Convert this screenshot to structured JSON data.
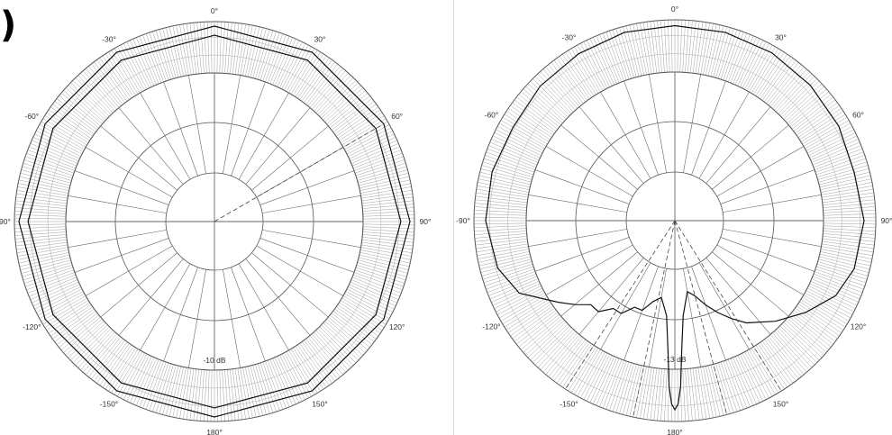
{
  "panel_label": ")",
  "chart_data": [
    {
      "type": "polar",
      "angle_labels": [
        "0°",
        "30°",
        "60°",
        "90°",
        "120°",
        "150°",
        "180°",
        "-150°",
        "-120°",
        "-90°",
        "-60°",
        "-30°"
      ],
      "angle_values": [
        0,
        30,
        60,
        90,
        120,
        150,
        180,
        -150,
        -120,
        -90,
        -60,
        -30
      ],
      "center_label": "-10 dB",
      "rmin_db": -10,
      "rmax_db": 0,
      "series": [
        {
          "style": "solid",
          "theta": [
            0,
            30,
            60,
            90,
            120,
            150,
            180,
            210,
            240,
            270,
            300,
            330
          ],
          "r_db": [
            -0.3,
            -0.3,
            -0.3,
            -0.3,
            -0.3,
            -0.3,
            -0.3,
            -0.3,
            -0.3,
            -0.3,
            -0.3,
            -0.3
          ]
        },
        {
          "style": "solid",
          "theta": [
            0,
            30,
            60,
            90,
            120,
            150,
            180,
            210,
            240,
            270,
            300,
            330
          ],
          "r_db": [
            -0.9,
            -0.9,
            -0.9,
            -0.9,
            -0.9,
            -0.9,
            -0.9,
            -0.9,
            -0.9,
            -0.9,
            -0.9,
            -0.9
          ]
        },
        {
          "style": "dashed",
          "theta": [
            60
          ],
          "r_db": [
            -0.5
          ]
        }
      ]
    },
    {
      "type": "polar",
      "angle_labels": [
        "0°",
        "30°",
        "60°",
        "90°",
        "120°",
        "150°",
        "180°",
        "-150°",
        "-120°",
        "-90°",
        "-60°",
        "-30°"
      ],
      "angle_values": [
        0,
        30,
        60,
        90,
        120,
        150,
        180,
        -150,
        -120,
        -90,
        -60,
        -30
      ],
      "center_label": "-13 dB",
      "rmin_db": -13,
      "rmax_db": 0,
      "series": [
        {
          "style": "solid",
          "theta": [
            0,
            15,
            30,
            45,
            60,
            75,
            90,
            105,
            115,
            125,
            135,
            145,
            150,
            155,
            160,
            165,
            170,
            175,
            177,
            178,
            179,
            180,
            181,
            182,
            183,
            185,
            190,
            195,
            200,
            205,
            210,
            215,
            220,
            225,
            230,
            235,
            245,
            255,
            270,
            285,
            300,
            315,
            330,
            345
          ],
          "r_db": [
            -0.5,
            -0.5,
            -0.6,
            -0.8,
            -1.0,
            -1.3,
            -1.0,
            -1.3,
            -2.0,
            -3.5,
            -5.0,
            -6.5,
            -7.5,
            -8.5,
            -9.5,
            -10.5,
            -11.0,
            -9.0,
            -6.0,
            -3.0,
            -1.5,
            -1.0,
            -1.5,
            -3.0,
            -6.0,
            -9.0,
            -10.5,
            -10.0,
            -9.0,
            -9.0,
            -8.0,
            -8.0,
            -7.0,
            -7.0,
            -6.0,
            -5.0,
            -2.5,
            -1.5,
            -1.0,
            -1.0,
            -1.2,
            -0.9,
            -0.7,
            -0.5
          ]
        },
        {
          "style": "dashed",
          "theta": [
            148,
            165,
            192,
            213
          ],
          "r_db": [
            0,
            0,
            0,
            0
          ]
        }
      ]
    }
  ]
}
